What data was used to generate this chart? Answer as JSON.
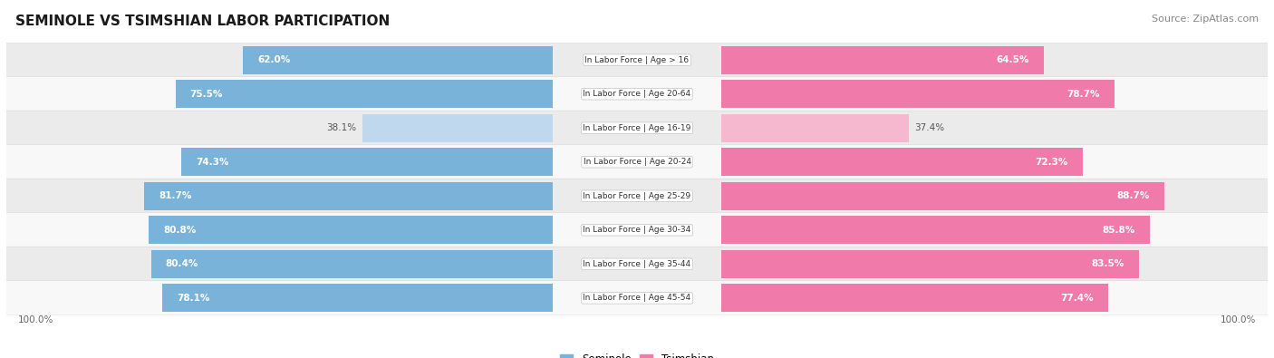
{
  "title": "SEMINOLE VS TSIMSHIAN LABOR PARTICIPATION",
  "source": "Source: ZipAtlas.com",
  "categories": [
    "In Labor Force | Age > 16",
    "In Labor Force | Age 20-64",
    "In Labor Force | Age 16-19",
    "In Labor Force | Age 20-24",
    "In Labor Force | Age 25-29",
    "In Labor Force | Age 30-34",
    "In Labor Force | Age 35-44",
    "In Labor Force | Age 45-54"
  ],
  "seminole_values": [
    62.0,
    75.5,
    38.1,
    74.3,
    81.7,
    80.8,
    80.4,
    78.1
  ],
  "tsimshian_values": [
    64.5,
    78.7,
    37.4,
    72.3,
    88.7,
    85.8,
    83.5,
    77.4
  ],
  "seminole_color": "#7ab3d9",
  "seminole_color_light": "#c0d8ed",
  "tsimshian_color": "#f07aaa",
  "tsimshian_color_light": "#f5b8cf",
  "row_bg_light": "#ebebeb",
  "row_bg_white": "#f8f8f8",
  "text_color_white": "#ffffff",
  "text_color_dark": "#555555",
  "label_color": "#333333",
  "legend_seminole": "Seminole",
  "legend_tsimshian": "Tsimshian",
  "footer_color": "#666666"
}
